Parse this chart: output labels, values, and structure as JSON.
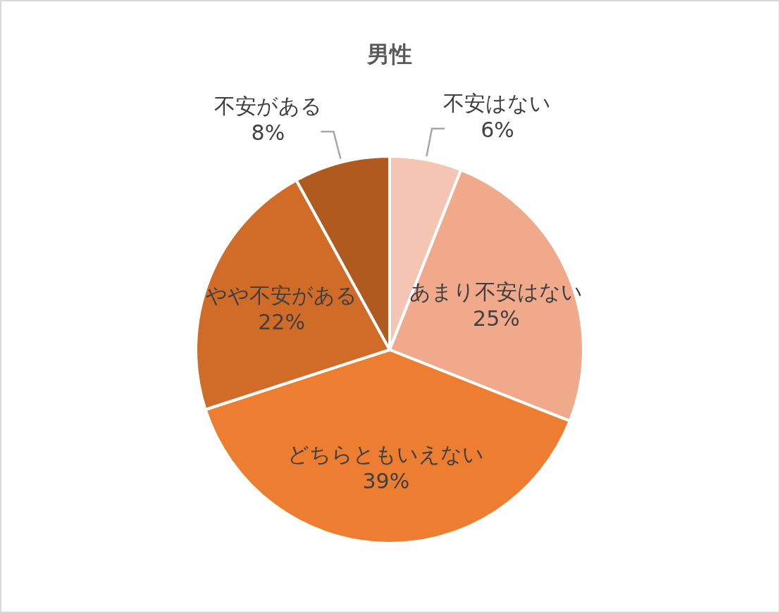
{
  "chart_data": {
    "type": "pie",
    "title": "男性",
    "categories": [
      "不安はない",
      "あまり不安はない",
      "どちらともいえない",
      "やや不安がある",
      "不安がある"
    ],
    "values": [
      6,
      25,
      39,
      22,
      8
    ],
    "colors": [
      "#f4c5b3",
      "#f0a98b",
      "#ed7d31",
      "#d06b28",
      "#b05a20"
    ],
    "value_labels": [
      "6%",
      "25%",
      "39%",
      "22%",
      "8%"
    ]
  }
}
